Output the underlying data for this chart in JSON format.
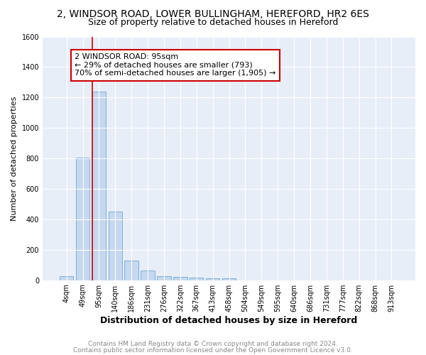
{
  "title1": "2, WINDSOR ROAD, LOWER BULLINGHAM, HEREFORD, HR2 6ES",
  "title2": "Size of property relative to detached houses in Hereford",
  "xlabel": "Distribution of detached houses by size in Hereford",
  "ylabel": "Number of detached properties",
  "bin_labels": [
    "4sqm",
    "49sqm",
    "95sqm",
    "140sqm",
    "186sqm",
    "231sqm",
    "276sqm",
    "322sqm",
    "367sqm",
    "413sqm",
    "458sqm",
    "504sqm",
    "549sqm",
    "595sqm",
    "640sqm",
    "686sqm",
    "731sqm",
    "777sqm",
    "822sqm",
    "868sqm",
    "913sqm"
  ],
  "bar_values": [
    25,
    805,
    1240,
    450,
    130,
    65,
    25,
    20,
    15,
    12,
    10,
    0,
    0,
    0,
    0,
    0,
    0,
    0,
    0,
    0,
    0
  ],
  "bar_color": "#c5d8f0",
  "bar_edge_color": "#7aafd4",
  "vline_x_index": 2,
  "vline_color": "#cc0000",
  "ylim": [
    0,
    1600
  ],
  "yticks": [
    0,
    200,
    400,
    600,
    800,
    1000,
    1200,
    1400,
    1600
  ],
  "annotation_text": "2 WINDSOR ROAD: 95sqm\n← 29% of detached houses are smaller (793)\n70% of semi-detached houses are larger (1,905) →",
  "annotation_box_color": "#ffffff",
  "annotation_box_edge": "#cc0000",
  "footer1": "Contains HM Land Registry data © Crown copyright and database right 2024.",
  "footer2": "Contains public sector information licensed under the Open Government Licence v3.0.",
  "background_color": "#ffffff",
  "plot_bg_color": "#e8eef8",
  "grid_color": "#ffffff",
  "title1_fontsize": 10,
  "title2_fontsize": 9,
  "xlabel_fontsize": 9,
  "ylabel_fontsize": 8,
  "tick_fontsize": 7,
  "annotation_fontsize": 8,
  "footer_fontsize": 6.5,
  "footer_color": "#888888"
}
